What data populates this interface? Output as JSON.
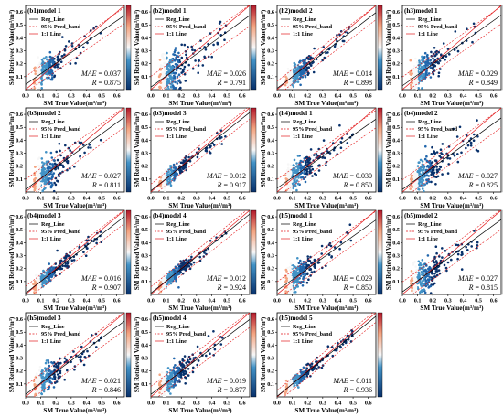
{
  "figure": {
    "x_axis_label": "SM True Value(m³/m³)",
    "y_axis_label": "SM Retrieved Value(m³/m³)",
    "legend": {
      "reg_line": "Reg_Line",
      "pred_band": "95% Pred_band",
      "one_to_one": "1:1 Line"
    },
    "metric_labels": {
      "mae": "MAE",
      "r": "R"
    },
    "colors": {
      "reg_line": "#000000",
      "pred_band": "#e31a1c",
      "one_to_one": "#e31a1c",
      "points_low": "#08306b",
      "points_high": "#b2182b"
    }
  },
  "chart_data": [
    {
      "type": "scatter",
      "title": "(b1)model 1",
      "mae": "0.037",
      "r": "0.875",
      "xlim": [
        0,
        0.65
      ],
      "ylim": [
        0,
        0.65
      ],
      "x_ticks": [
        "0.0",
        "0.1",
        "0.2",
        "0.3",
        "0.4",
        "0.5",
        "0.6"
      ],
      "y_ticks": [
        "0.1",
        "0.2",
        "0.3",
        "0.4",
        "0.5",
        "0.6"
      ],
      "reg_line": {
        "slope": 0.82,
        "intercept": 0.04
      },
      "legend_position": "top-left"
    },
    {
      "type": "scatter",
      "title": "(b2)model 1",
      "mae": "0.026",
      "r": "0.791",
      "xlim": [
        0,
        0.65
      ],
      "ylim": [
        0,
        0.65
      ],
      "x_ticks": [
        "0.0",
        "0.1",
        "0.2",
        "0.3",
        "0.4",
        "0.5",
        "0.6"
      ],
      "y_ticks": [
        "0.1",
        "0.2",
        "0.3",
        "0.4",
        "0.5",
        "0.6"
      ],
      "reg_line": {
        "slope": 0.85,
        "intercept": 0.02
      },
      "legend_position": "top-left"
    },
    {
      "type": "scatter",
      "title": "(h2)model 2",
      "mae": "0.014",
      "r": "0.898",
      "xlim": [
        0,
        0.65
      ],
      "ylim": [
        0,
        0.65
      ],
      "x_ticks": [
        "0.0",
        "0.1",
        "0.2",
        "0.3",
        "0.4",
        "0.5",
        "0.6"
      ],
      "y_ticks": [
        "0.1",
        "0.2",
        "0.3",
        "0.4",
        "0.5",
        "0.6"
      ],
      "reg_line": {
        "slope": 0.9,
        "intercept": 0.01
      },
      "legend_position": "top-left"
    },
    {
      "type": "scatter",
      "title": "(h3)model 1",
      "mae": "0.029",
      "r": "0.849",
      "xlim": [
        0,
        0.65
      ],
      "ylim": [
        0,
        0.65
      ],
      "x_ticks": [
        "0.0",
        "0.1",
        "0.2",
        "0.3",
        "0.4",
        "0.5",
        "0.6"
      ],
      "y_ticks": [
        "0.1",
        "0.2",
        "0.3",
        "0.4",
        "0.5",
        "0.6"
      ],
      "reg_line": {
        "slope": 0.84,
        "intercept": 0.03
      },
      "legend_position": "top-left"
    },
    {
      "type": "scatter",
      "title": "(b3)model 2",
      "mae": "0.027",
      "r": "0.811",
      "xlim": [
        0,
        0.65
      ],
      "ylim": [
        0,
        0.65
      ],
      "x_ticks": [
        "0.0",
        "0.1",
        "0.2",
        "0.3",
        "0.4",
        "0.5",
        "0.6"
      ],
      "y_ticks": [
        "0.1",
        "0.2",
        "0.3",
        "0.4",
        "0.5",
        "0.6"
      ],
      "reg_line": {
        "slope": 0.86,
        "intercept": 0.02
      },
      "legend_position": "top-left"
    },
    {
      "type": "scatter",
      "title": "(b3)model 3",
      "mae": "0.012",
      "r": "0.917",
      "xlim": [
        0,
        0.65
      ],
      "ylim": [
        0,
        0.65
      ],
      "x_ticks": [
        "0.0",
        "0.1",
        "0.2",
        "0.3",
        "0.4",
        "0.5",
        "0.6"
      ],
      "y_ticks": [
        "0.1",
        "0.2",
        "0.3",
        "0.4",
        "0.5",
        "0.6"
      ],
      "reg_line": {
        "slope": 0.93,
        "intercept": 0.01
      },
      "legend_position": "top-left"
    },
    {
      "type": "scatter",
      "title": "(h4)model 1",
      "mae": "0.030",
      "r": "0.850",
      "xlim": [
        0,
        0.65
      ],
      "ylim": [
        0,
        0.65
      ],
      "x_ticks": [
        "0.0",
        "0.1",
        "0.2",
        "0.3",
        "0.4",
        "0.5",
        "0.6"
      ],
      "y_ticks": [
        "0.1",
        "0.2",
        "0.3",
        "0.4",
        "0.5",
        "0.6"
      ],
      "reg_line": {
        "slope": 0.82,
        "intercept": 0.03
      },
      "legend_position": "top-left"
    },
    {
      "type": "scatter",
      "title": "(b4)model 2",
      "mae": "0.027",
      "r": "0.825",
      "xlim": [
        0,
        0.65
      ],
      "ylim": [
        0,
        0.65
      ],
      "x_ticks": [
        "0.0",
        "0.1",
        "0.2",
        "0.3",
        "0.4",
        "0.5",
        "0.6"
      ],
      "y_ticks": [
        "0.1",
        "0.2",
        "0.3",
        "0.4",
        "0.5",
        "0.6"
      ],
      "reg_line": {
        "slope": 0.85,
        "intercept": 0.02
      },
      "legend_position": "top-left"
    },
    {
      "type": "scatter",
      "title": "(b4)model 3",
      "mae": "0.016",
      "r": "0.907",
      "xlim": [
        0,
        0.65
      ],
      "ylim": [
        0,
        0.65
      ],
      "x_ticks": [
        "0.0",
        "0.1",
        "0.2",
        "0.3",
        "0.4",
        "0.5",
        "0.6"
      ],
      "y_ticks": [
        "0.1",
        "0.2",
        "0.3",
        "0.4",
        "0.5",
        "0.6"
      ],
      "reg_line": {
        "slope": 0.91,
        "intercept": 0.01
      },
      "legend_position": "top-left"
    },
    {
      "type": "scatter",
      "title": "(b4)model 4",
      "mae": "0.012",
      "r": "0.924",
      "xlim": [
        0,
        0.65
      ],
      "ylim": [
        0,
        0.65
      ],
      "x_ticks": [
        "0.0",
        "0.1",
        "0.2",
        "0.3",
        "0.4",
        "0.5",
        "0.6"
      ],
      "y_ticks": [
        "0.1",
        "0.2",
        "0.3",
        "0.4",
        "0.5",
        "0.6"
      ],
      "reg_line": {
        "slope": 0.94,
        "intercept": 0.01
      },
      "legend_position": "top-left"
    },
    {
      "type": "scatter",
      "title": "(h5)model 1",
      "mae": "0.029",
      "r": "0.850",
      "xlim": [
        0,
        0.65
      ],
      "ylim": [
        0,
        0.65
      ],
      "x_ticks": [
        "0.0",
        "0.1",
        "0.2",
        "0.3",
        "0.4",
        "0.5",
        "0.6"
      ],
      "y_ticks": [
        "0.1",
        "0.2",
        "0.3",
        "0.4",
        "0.5",
        "0.6"
      ],
      "reg_line": {
        "slope": 0.84,
        "intercept": 0.03
      },
      "legend_position": "top-left"
    },
    {
      "type": "scatter",
      "title": "(b5)model 2",
      "mae": "0.027",
      "r": "0.815",
      "xlim": [
        0,
        0.65
      ],
      "ylim": [
        0,
        0.65
      ],
      "x_ticks": [
        "0.0",
        "0.1",
        "0.2",
        "0.3",
        "0.4",
        "0.5",
        "0.6"
      ],
      "y_ticks": [
        "0.1",
        "0.2",
        "0.3",
        "0.4",
        "0.5",
        "0.6"
      ],
      "reg_line": {
        "slope": 0.86,
        "intercept": 0.02
      },
      "legend_position": "top-left"
    },
    {
      "type": "scatter",
      "title": "(h5)model 3",
      "mae": "0.021",
      "r": "0.846",
      "xlim": [
        0,
        0.65
      ],
      "ylim": [
        0,
        0.65
      ],
      "x_ticks": [
        "0.0",
        "0.1",
        "0.2",
        "0.3",
        "0.4",
        "0.5",
        "0.6"
      ],
      "y_ticks": [
        "0.1",
        "0.2",
        "0.3",
        "0.4",
        "0.5",
        "0.6"
      ],
      "reg_line": {
        "slope": 0.87,
        "intercept": 0.02
      },
      "legend_position": "top-left"
    },
    {
      "type": "scatter",
      "title": "(h5)model 4",
      "mae": "0.019",
      "r": "0.877",
      "xlim": [
        0,
        0.65
      ],
      "ylim": [
        0,
        0.65
      ],
      "x_ticks": [
        "0.0",
        "0.1",
        "0.2",
        "0.3",
        "0.4",
        "0.5",
        "0.6"
      ],
      "y_ticks": [
        "0.1",
        "0.2",
        "0.3",
        "0.4",
        "0.5",
        "0.6"
      ],
      "reg_line": {
        "slope": 0.89,
        "intercept": 0.02
      },
      "legend_position": "top-left"
    },
    {
      "type": "scatter",
      "title": "(h5)model 5",
      "mae": "0.011",
      "r": "0.936",
      "xlim": [
        0,
        0.65
      ],
      "ylim": [
        0,
        0.65
      ],
      "x_ticks": [
        "0.0",
        "0.1",
        "0.2",
        "0.3",
        "0.4",
        "0.5",
        "0.6"
      ],
      "y_ticks": [
        "0.1",
        "0.2",
        "0.3",
        "0.4",
        "0.5",
        "0.6"
      ],
      "reg_line": {
        "slope": 0.95,
        "intercept": 0.005
      },
      "legend_position": "top-left"
    }
  ]
}
